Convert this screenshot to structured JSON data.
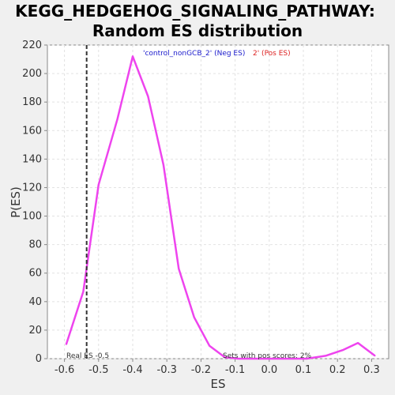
{
  "chart_data": {
    "type": "line",
    "title_line1": "KEGG_HEDGEHOG_SIGNALING_PATHWAY:",
    "title_line2": "Random ES distribution",
    "xlabel": "ES",
    "ylabel": "P(ES)",
    "xlim": [
      -0.65,
      0.35
    ],
    "ylim": [
      0,
      220
    ],
    "xticks": [
      "-0.6",
      "-0.5",
      "-0.4",
      "-0.3",
      "-0.2",
      "-0.1",
      "0.0",
      "0.1",
      "0.2",
      "0.3"
    ],
    "yticks": [
      "0",
      "20",
      "40",
      "60",
      "80",
      "100",
      "120",
      "140",
      "160",
      "180",
      "200",
      "220"
    ],
    "grid": true,
    "series": [
      {
        "x": [
          -0.595,
          -0.545,
          -0.5,
          -0.445,
          -0.4,
          -0.355,
          -0.31,
          -0.265,
          -0.22,
          -0.175,
          -0.13,
          -0.09,
          -0.04,
          0.01,
          0.06,
          0.11,
          0.165,
          0.215,
          0.26,
          0.31
        ],
        "y": [
          10,
          47,
          122,
          168,
          212,
          184,
          136,
          63,
          29,
          9,
          1,
          0,
          0,
          0,
          0,
          0,
          2,
          6,
          11,
          2
        ],
        "color": "#ee44ee"
      }
    ],
    "real_es_x": -0.535,
    "legend": {
      "neg_label": "'control_nonGCB_2' (Neg ES)",
      "pos_label": "2' (Pos ES)",
      "neg_color": "#1a1acc",
      "pos_color": "#dd2222"
    },
    "annotations": {
      "real_es": "Real ES -0.5",
      "pos_scores": "Sets with pos scores: 2%"
    }
  }
}
